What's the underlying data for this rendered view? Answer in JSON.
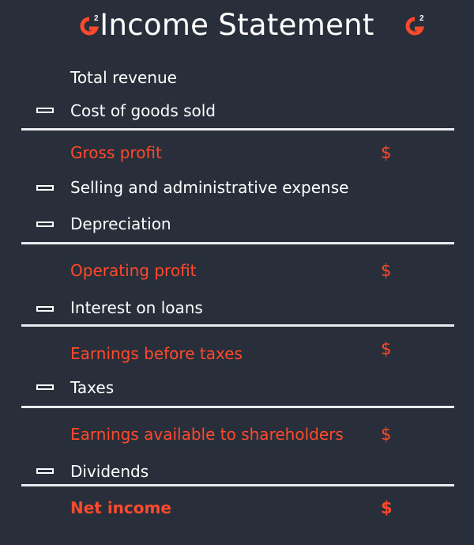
{
  "header": {
    "title": "Income Statement",
    "logo_text": "G2",
    "logo_icon": "g2-logo-icon"
  },
  "colors": {
    "background": "#282f3a",
    "text": "#ffffff",
    "accent": "#ff492c",
    "rule": "#e9ecef"
  },
  "rows": [
    {
      "label": "Total revenue"
    },
    {
      "label": "Cost of goods sold",
      "operator": "minus"
    },
    {
      "label": "Gross profit",
      "currency": "$"
    },
    {
      "label": "Selling and administrative expense",
      "operator": "minus"
    },
    {
      "label": "Depreciation",
      "operator": "minus"
    },
    {
      "label": "Operating profit",
      "currency": "$"
    },
    {
      "label": "Interest on loans",
      "operator": "minus"
    },
    {
      "label": "Earnings before taxes",
      "currency": "$"
    },
    {
      "label": "Taxes",
      "operator": "minus"
    },
    {
      "label": "Earnings available to shareholders",
      "currency": "$"
    },
    {
      "label": "Dividends",
      "operator": "minus"
    },
    {
      "label": "Net income",
      "currency": "$"
    }
  ]
}
